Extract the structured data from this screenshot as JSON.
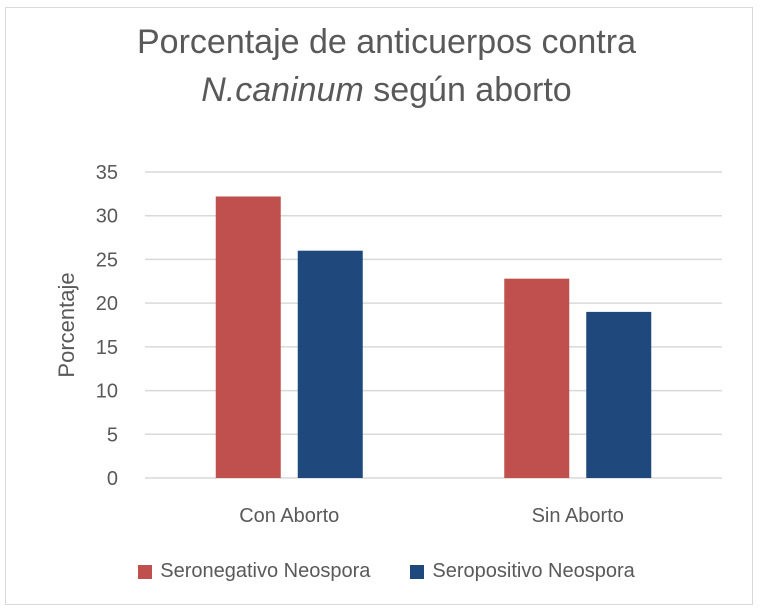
{
  "chart_data": {
    "type": "bar",
    "title_line1": "Porcentaje de anticuerpos contra",
    "title_italic": "N.caninum",
    "title_rest": " según aborto",
    "xlabel": "",
    "ylabel": "Porcentaje",
    "ylim": [
      0,
      35
    ],
    "yticks": [
      0,
      5,
      10,
      15,
      20,
      25,
      30,
      35
    ],
    "categories": [
      "Con Aborto",
      "Sin Aborto"
    ],
    "series": [
      {
        "name": "Seronegativo Neospora",
        "color": "#c0504d",
        "values": [
          32.2,
          22.8
        ]
      },
      {
        "name": "Seropositivo Neospora",
        "color": "#1f497d",
        "values": [
          26.0,
          19.0
        ]
      }
    ],
    "grid": true,
    "legend_position": "bottom"
  }
}
